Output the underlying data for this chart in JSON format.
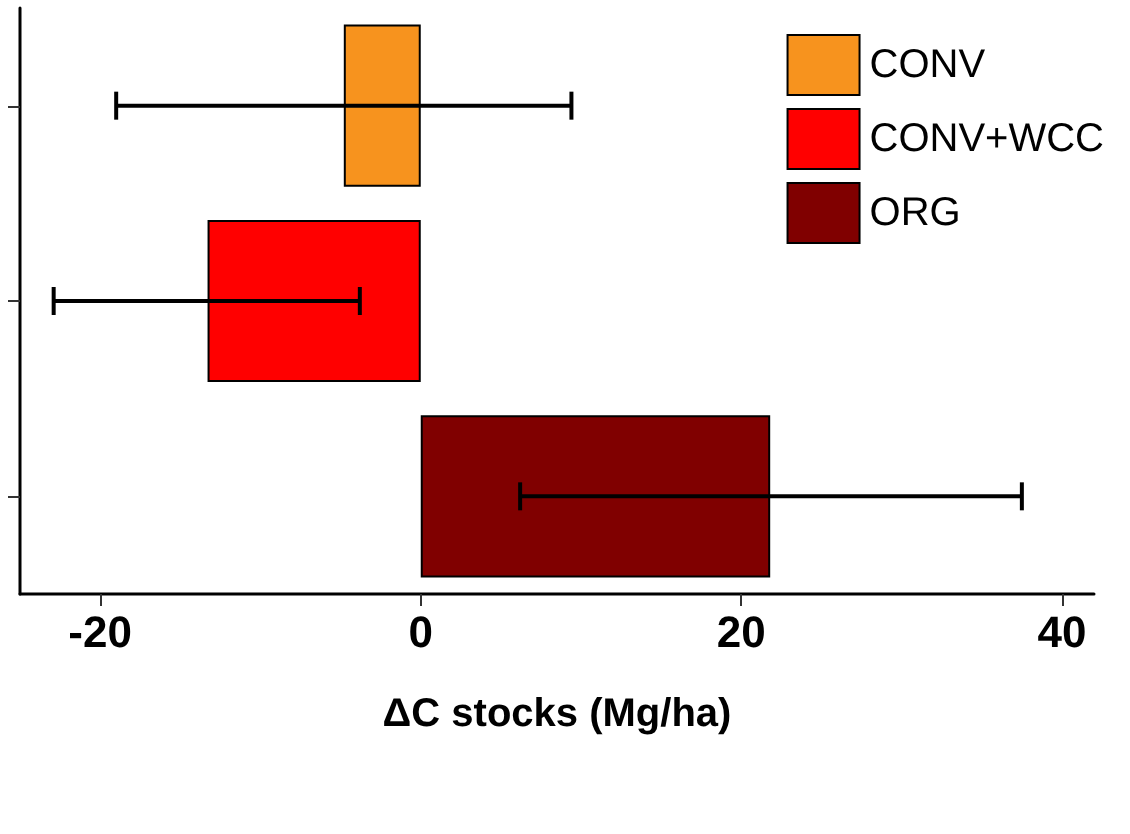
{
  "chart_data": {
    "type": "bar",
    "orientation": "horizontal",
    "xlabel": "ΔC stocks (Mg/ha)",
    "categories": [
      null,
      null,
      null
    ],
    "series": [
      {
        "name": "CONV",
        "color": "#f7931e",
        "values": [
          -4.8,
          null,
          null
        ],
        "errors": [
          [
            -19,
            9.4
          ],
          null,
          null
        ]
      },
      {
        "name": "CONV+WCC",
        "color": "#ff0000",
        "values": [
          null,
          -13.3,
          null
        ],
        "errors": [
          null,
          [
            -22.9,
            -3.8
          ],
          null
        ]
      },
      {
        "name": "ORG",
        "color": "#800000",
        "values": [
          null,
          null,
          21.8
        ],
        "errors": [
          null,
          null,
          [
            6.2,
            37.5
          ]
        ]
      }
    ],
    "xlim": [
      -25,
      42
    ],
    "xticks": [
      -20,
      0,
      20,
      40
    ],
    "tick_labels": "x",
    "grid": false,
    "legend": "top right"
  }
}
